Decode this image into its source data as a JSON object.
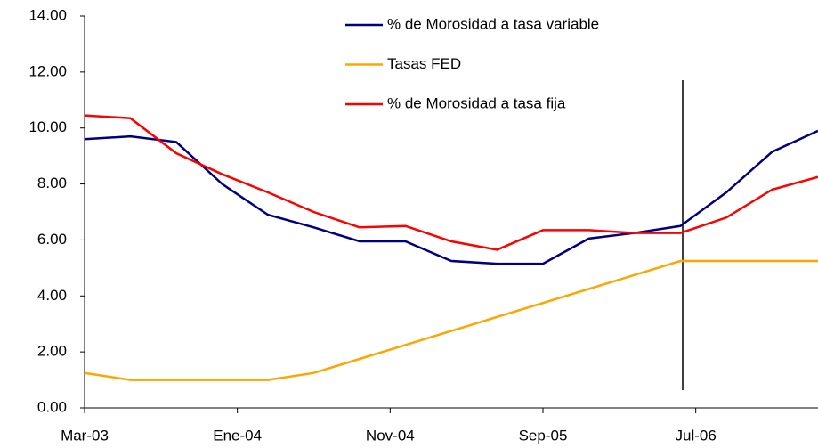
{
  "chart_data": {
    "type": "line",
    "x": [
      0,
      3,
      6,
      9,
      12,
      15,
      18,
      21,
      24,
      27,
      30,
      33,
      36,
      39,
      42,
      45,
      48
    ],
    "xlim": [
      0,
      48
    ],
    "xticks": [
      {
        "value": 0,
        "label": "Mar-03"
      },
      {
        "value": 10,
        "label": "Ene-04"
      },
      {
        "value": 20,
        "label": "Nov-04"
      },
      {
        "value": 30,
        "label": "Sep-05"
      },
      {
        "value": 40,
        "label": "Jul-06"
      }
    ],
    "ylim": [
      0,
      14
    ],
    "yticks": [
      {
        "value": 0,
        "label": "0.00"
      },
      {
        "value": 2,
        "label": "2.00"
      },
      {
        "value": 4,
        "label": "4.00"
      },
      {
        "value": 6,
        "label": "6.00"
      },
      {
        "value": 8,
        "label": "8.00"
      },
      {
        "value": 10,
        "label": "10.00"
      },
      {
        "value": 12,
        "label": "12.00"
      },
      {
        "value": 14,
        "label": "14.00"
      }
    ],
    "series": [
      {
        "name": "% de Morosidad a tasa variable",
        "color": "#000080",
        "values": [
          9.6,
          9.7,
          9.5,
          8.0,
          6.9,
          6.45,
          5.95,
          5.95,
          5.25,
          5.15,
          5.15,
          6.05,
          6.25,
          6.5,
          7.7,
          9.15,
          9.9
        ]
      },
      {
        "name": "Tasas FED",
        "color": "#ffa500",
        "values": [
          1.25,
          1.0,
          1.0,
          1.0,
          1.0,
          1.25,
          1.75,
          2.25,
          2.75,
          3.25,
          3.75,
          4.25,
          4.75,
          5.25,
          5.25,
          5.25,
          5.25
        ]
      },
      {
        "name": "% de Morosidad a tasa fija",
        "color": "#ff0000",
        "values": [
          10.45,
          10.35,
          9.1,
          8.35,
          7.7,
          7.0,
          6.45,
          6.5,
          5.95,
          5.65,
          6.35,
          6.35,
          6.25,
          6.25,
          6.8,
          7.8,
          8.25
        ]
      }
    ]
  }
}
